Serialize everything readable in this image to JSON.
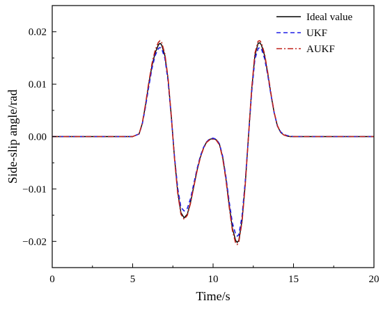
{
  "chart_data": {
    "type": "line",
    "title": "",
    "xlabel": "Time/s",
    "ylabel": "Side-slip angle/rad",
    "xlim": [
      0,
      20
    ],
    "ylim": [
      -0.025,
      0.025
    ],
    "xticks": [
      0,
      5,
      10,
      15,
      20
    ],
    "yticks": [
      -0.02,
      -0.01,
      0.0,
      0.01,
      0.02
    ],
    "xtick_labels": [
      "0",
      "5",
      "10",
      "15",
      "20"
    ],
    "ytick_labels": [
      "−0.02",
      "−0.01",
      "0.00",
      "0.01",
      "0.02"
    ],
    "grid": false,
    "legend_position": "top-right",
    "x": [
      0,
      1,
      2,
      3,
      4,
      5,
      5.4,
      5.6,
      5.8,
      6.0,
      6.2,
      6.4,
      6.6,
      6.7,
      6.8,
      7.0,
      7.2,
      7.4,
      7.6,
      7.8,
      8.0,
      8.2,
      8.4,
      8.6,
      8.8,
      9.0,
      9.2,
      9.4,
      9.6,
      9.8,
      10.0,
      10.2,
      10.4,
      10.6,
      10.8,
      11.0,
      11.2,
      11.4,
      11.5,
      11.6,
      11.8,
      12.0,
      12.2,
      12.4,
      12.6,
      12.8,
      12.9,
      13.0,
      13.2,
      13.4,
      13.6,
      13.8,
      14.0,
      14.2,
      14.4,
      14.6,
      14.8,
      15.0,
      16,
      17,
      18,
      19,
      20
    ],
    "series": [
      {
        "name": "Ideal value",
        "color": "#000000",
        "dash": "solid",
        "values": [
          0,
          0,
          0,
          0,
          0,
          0,
          0.0005,
          0.0025,
          0.006,
          0.01,
          0.0135,
          0.016,
          0.0175,
          0.0178,
          0.0175,
          0.0155,
          0.011,
          0.004,
          -0.004,
          -0.0105,
          -0.0145,
          -0.0155,
          -0.0148,
          -0.0125,
          -0.0095,
          -0.0065,
          -0.004,
          -0.0022,
          -0.001,
          -0.0005,
          -0.0004,
          -0.0006,
          -0.0015,
          -0.004,
          -0.008,
          -0.013,
          -0.0175,
          -0.0198,
          -0.0202,
          -0.0198,
          -0.016,
          -0.009,
          0,
          0.009,
          0.0155,
          0.0178,
          0.0179,
          0.0175,
          0.0155,
          0.012,
          0.008,
          0.0045,
          0.002,
          0.0008,
          0.0003,
          0.0001,
          0,
          0,
          0,
          0,
          0,
          0,
          0
        ]
      },
      {
        "name": "UKF",
        "color": "#1f1fe6",
        "dash": "dashed",
        "values": [
          0,
          0,
          0,
          0,
          0,
          0,
          0.0005,
          0.0024,
          0.0057,
          0.0095,
          0.013,
          0.0155,
          0.0168,
          0.017,
          0.0168,
          0.015,
          0.0106,
          0.0038,
          -0.0038,
          -0.0098,
          -0.0135,
          -0.0142,
          -0.0137,
          -0.0118,
          -0.009,
          -0.0062,
          -0.0038,
          -0.0021,
          -0.001,
          -0.0004,
          -0.0003,
          -0.0005,
          -0.0014,
          -0.0038,
          -0.0077,
          -0.0124,
          -0.0165,
          -0.0186,
          -0.019,
          -0.0187,
          -0.0152,
          -0.0085,
          0,
          0.0085,
          0.0148,
          0.0168,
          0.017,
          0.0168,
          0.0149,
          0.0117,
          0.0079,
          0.0045,
          0.002,
          0.0009,
          0.0004,
          0.0002,
          0.0001,
          0,
          0,
          0,
          0,
          0,
          0
        ]
      },
      {
        "name": "AUKF",
        "color": "#c0221b",
        "dash": "dashdot",
        "values": [
          0,
          0,
          0,
          0,
          0,
          0,
          0.0005,
          0.0026,
          0.0062,
          0.0103,
          0.0139,
          0.0165,
          0.018,
          0.0183,
          0.018,
          0.0158,
          0.0112,
          0.004,
          -0.0042,
          -0.0108,
          -0.0148,
          -0.0158,
          -0.015,
          -0.0127,
          -0.0096,
          -0.0066,
          -0.0041,
          -0.0023,
          -0.0011,
          -0.0006,
          -0.0005,
          -0.0007,
          -0.0016,
          -0.0042,
          -0.0083,
          -0.0134,
          -0.0179,
          -0.0203,
          -0.0206,
          -0.0201,
          -0.0163,
          -0.0092,
          0,
          0.0092,
          0.0159,
          0.0182,
          0.0183,
          0.0179,
          0.0158,
          0.0122,
          0.0082,
          0.0046,
          0.0021,
          0.0008,
          0.0003,
          0.0001,
          0,
          0,
          0,
          0,
          0,
          0,
          0
        ]
      }
    ]
  }
}
